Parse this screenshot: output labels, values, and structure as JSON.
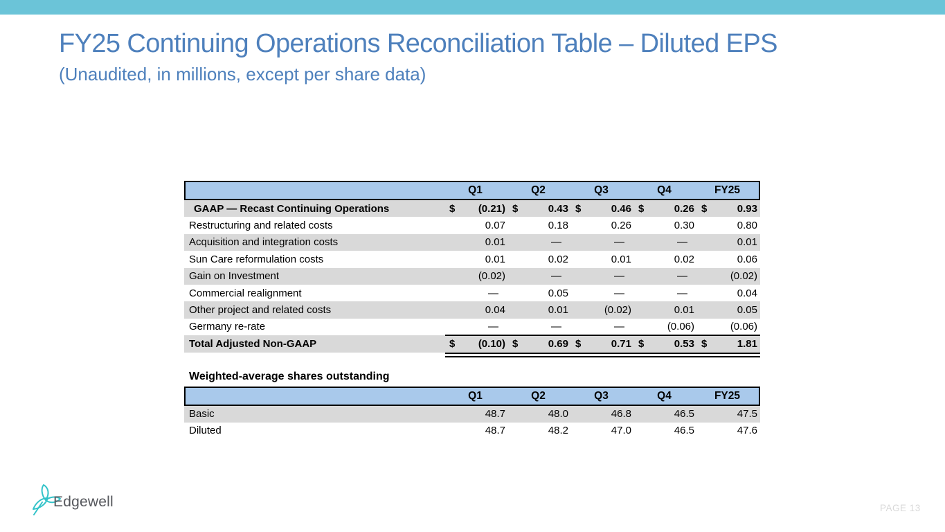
{
  "slide": {
    "title": "FY25 Continuing Operations Reconciliation Table – Diluted EPS",
    "subtitle": "(Unaudited, in millions, except per share data)",
    "page_label": "PAGE 13",
    "logo_text": "Edgewell"
  },
  "colors": {
    "top_bar": "#6BC4D8",
    "title_text": "#4E80BC",
    "table_header_bg": "#A9C9EB",
    "row_stripe": "#D9D9D9",
    "table_border": "#000000",
    "logo_icon": "#33C3C9",
    "logo_text": "#54565B",
    "page_label_text": "#D8D8D8"
  },
  "eps_table": {
    "columns": [
      "Q1",
      "Q2",
      "Q3",
      "Q4",
      "FY25"
    ],
    "rows": [
      {
        "label": "GAAP — Recast Continuing Operations",
        "dollar_sign": true,
        "bold": true,
        "indent": true,
        "values": [
          "(0.21)",
          "0.43",
          "0.46",
          "0.26",
          "0.93"
        ]
      },
      {
        "label": "Restructuring and related costs",
        "values": [
          "0.07",
          "0.18",
          "0.26",
          "0.30",
          "0.80"
        ]
      },
      {
        "label": "Acquisition and integration costs",
        "values": [
          "0.01",
          "—",
          "—",
          "—",
          "0.01"
        ]
      },
      {
        "label": "Sun Care reformulation costs",
        "values": [
          "0.01",
          "0.02",
          "0.01",
          "0.02",
          "0.06"
        ]
      },
      {
        "label": "Gain on Investment",
        "values": [
          "(0.02)",
          "—",
          "—",
          "—",
          "(0.02)"
        ]
      },
      {
        "label": "Commercial realignment",
        "values": [
          "—",
          "0.05",
          "—",
          "—",
          "0.04"
        ]
      },
      {
        "label": "Other project and related costs",
        "values": [
          "0.04",
          "0.01",
          "(0.02)",
          "0.01",
          "0.05"
        ]
      },
      {
        "label": "Germany re-rate",
        "values": [
          "—",
          "—",
          "—",
          "(0.06)",
          "(0.06)"
        ]
      },
      {
        "label": "Total Adjusted Non-GAAP",
        "dollar_sign": true,
        "bold": true,
        "total": true,
        "values": [
          "(0.10)",
          "0.69",
          "0.71",
          "0.53",
          "1.81"
        ]
      }
    ]
  },
  "shares_table": {
    "title": "Weighted-average shares outstanding",
    "columns": [
      "Q1",
      "Q2",
      "Q3",
      "Q4",
      "FY25"
    ],
    "rows": [
      {
        "label": "Basic",
        "values": [
          "48.7",
          "48.0",
          "46.8",
          "46.5",
          "47.5"
        ]
      },
      {
        "label": "Diluted",
        "values": [
          "48.7",
          "48.2",
          "47.0",
          "46.5",
          "47.6"
        ]
      }
    ]
  }
}
